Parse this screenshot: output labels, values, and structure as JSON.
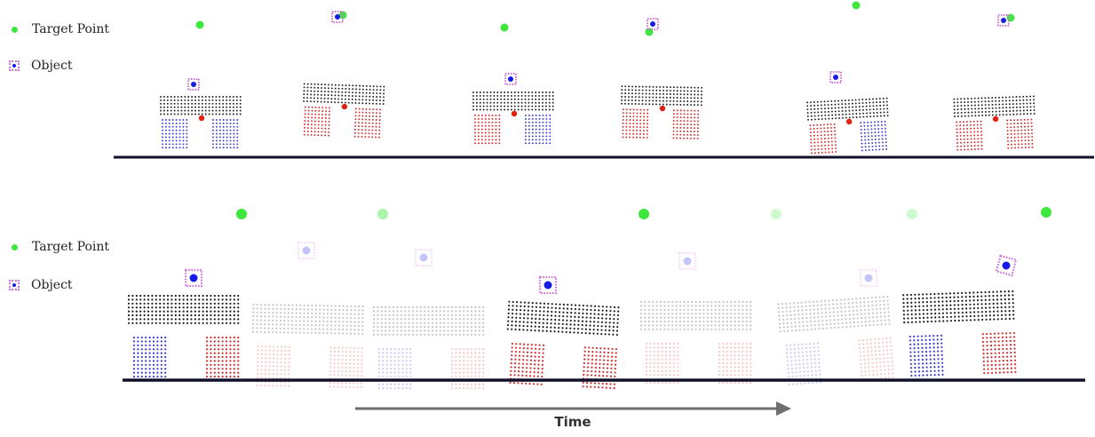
{
  "legend_top": {
    "target_label": "Target Point",
    "object_label": "Object"
  },
  "legend_bottom": {
    "target_label": "Target Point",
    "object_label": "Object"
  },
  "time_label": "Time",
  "colors": {
    "target": "#3ee63e",
    "object_dot": "#1a1ae6",
    "object_frame": "#d070d8",
    "body": "#1c1c1c",
    "leg_red": "#d42a2a",
    "leg_blue": "#3a3ad8",
    "center": "#e02010",
    "ground": "#10102a",
    "arrow": "#6e6e6e"
  },
  "top_frames": [
    {
      "left_leg": "blue",
      "right_leg": "blue"
    },
    {
      "left_leg": "red",
      "right_leg": "red"
    },
    {
      "left_leg": "red",
      "right_leg": "blue"
    },
    {
      "left_leg": "red",
      "right_leg": "red"
    },
    {
      "left_leg": "red",
      "right_leg": "blue"
    },
    {
      "left_leg": "red",
      "right_leg": "red"
    }
  ],
  "bottom_frames": [
    {
      "opacity": 1.0,
      "left_leg": "blue",
      "right_leg": "red"
    },
    {
      "opacity": 0.25,
      "left_leg": "red",
      "right_leg": "red"
    },
    {
      "opacity": 0.25,
      "left_leg": "blue",
      "right_leg": "red"
    },
    {
      "opacity": 1.0,
      "left_leg": "red",
      "right_leg": "red"
    },
    {
      "opacity": 0.25,
      "left_leg": "red",
      "right_leg": "red"
    },
    {
      "opacity": 0.25,
      "left_leg": "blue",
      "right_leg": "red"
    },
    {
      "opacity": 1.0,
      "left_leg": "blue",
      "right_leg": "red"
    }
  ]
}
